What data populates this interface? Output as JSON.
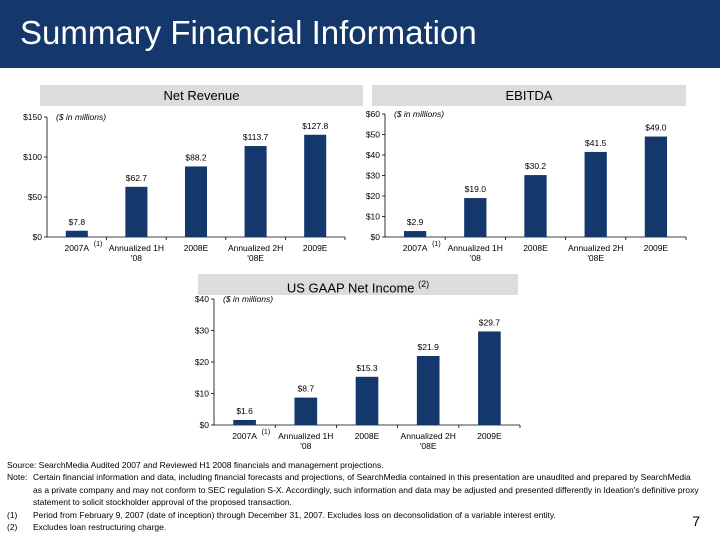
{
  "header": {
    "title": "Summary Financial Information"
  },
  "charts": {
    "revenue": {
      "label": "Net Revenue"
    },
    "ebitda": {
      "label": "EBITDA"
    },
    "netincome": {
      "label": "US GAAP Net Income",
      "note_ref": "(2)"
    }
  },
  "chart_data": [
    {
      "id": "revenue",
      "type": "bar",
      "title": "Net Revenue",
      "unit_note": "($ in millions)",
      "categories": [
        "2007A",
        "Annualized 1H '08",
        "2008E",
        "Annualized 2H '08E",
        "2009E"
      ],
      "category_lines": [
        [
          "2007A"
        ],
        [
          "Annualized 1H",
          "'08"
        ],
        [
          "2008E"
        ],
        [
          "Annualized 2H",
          "'08E"
        ],
        [
          "2009E"
        ]
      ],
      "footnote_marker": "(1)",
      "values": [
        7.8,
        62.7,
        88.2,
        113.7,
        127.8
      ],
      "value_labels": [
        "$7.8",
        "$62.7",
        "$88.2",
        "$113.7",
        "$127.8"
      ],
      "yticks": [
        "$0",
        "$50",
        "$100",
        "$150"
      ],
      "ylim": [
        0,
        150
      ],
      "color": "#14386b"
    },
    {
      "id": "ebitda",
      "type": "bar",
      "title": "EBITDA",
      "unit_note": "($ in millions)",
      "categories": [
        "2007A",
        "Annualized 1H '08",
        "2008E",
        "Annualized 2H '08E",
        "2009E"
      ],
      "category_lines": [
        [
          "2007A"
        ],
        [
          "Annualized 1H",
          "'08"
        ],
        [
          "2008E"
        ],
        [
          "Annualized 2H",
          "'08E"
        ],
        [
          "2009E"
        ]
      ],
      "footnote_marker": "(1)",
      "values": [
        2.9,
        19.0,
        30.2,
        41.5,
        49.0
      ],
      "value_labels": [
        "$2.9",
        "$19.0",
        "$30.2",
        "$41.5",
        "$49.0"
      ],
      "yticks": [
        "$0",
        "$10",
        "$20",
        "$30",
        "$40",
        "$50",
        "$60"
      ],
      "ylim": [
        0,
        60
      ],
      "color": "#14386b"
    },
    {
      "id": "netincome",
      "type": "bar",
      "title": "US GAAP Net Income",
      "unit_note": "($ in millions)",
      "categories": [
        "2007A",
        "Annualized 1H '08",
        "2008E",
        "Annualized 2H '08E",
        "2009E"
      ],
      "category_lines": [
        [
          "2007A"
        ],
        [
          "Annualized 1H",
          "'08"
        ],
        [
          "2008E"
        ],
        [
          "Annualized 2H",
          "'08E"
        ],
        [
          "2009E"
        ]
      ],
      "footnote_marker": "(1)",
      "values": [
        1.6,
        8.7,
        15.3,
        21.9,
        29.7
      ],
      "value_labels": [
        "$1.6",
        "$8.7",
        "$15.3",
        "$21.9",
        "$29.7"
      ],
      "yticks": [
        "$0",
        "$10",
        "$20",
        "$30",
        "$40"
      ],
      "ylim": [
        0,
        40
      ],
      "color": "#14386b"
    }
  ],
  "notes": {
    "source": "Source: SearchMedia Audited 2007 and Reviewed H1 2008 financials and management projections.",
    "note_label": "Note:",
    "note_text": "Certain financial information and data, including financial forecasts and projections, of SearchMedia contained in this presentation are unaudited and prepared by SearchMedia as a private company and may not conform to SEC regulation S-X. Accordingly, such information and data may be adjusted and presented differently in Ideation's definitive proxy statement to solicit stockholder approval of the proposed transaction.",
    "fn1_label": "(1)",
    "fn1_text": "Period from February 9, 2007 (date of inception) through December 31, 2007. Excludes loss on deconsolidation of a variable interest entity.",
    "fn2_label": "(2)",
    "fn2_text": "Excludes loan restructuring charge."
  },
  "page_number": "7"
}
